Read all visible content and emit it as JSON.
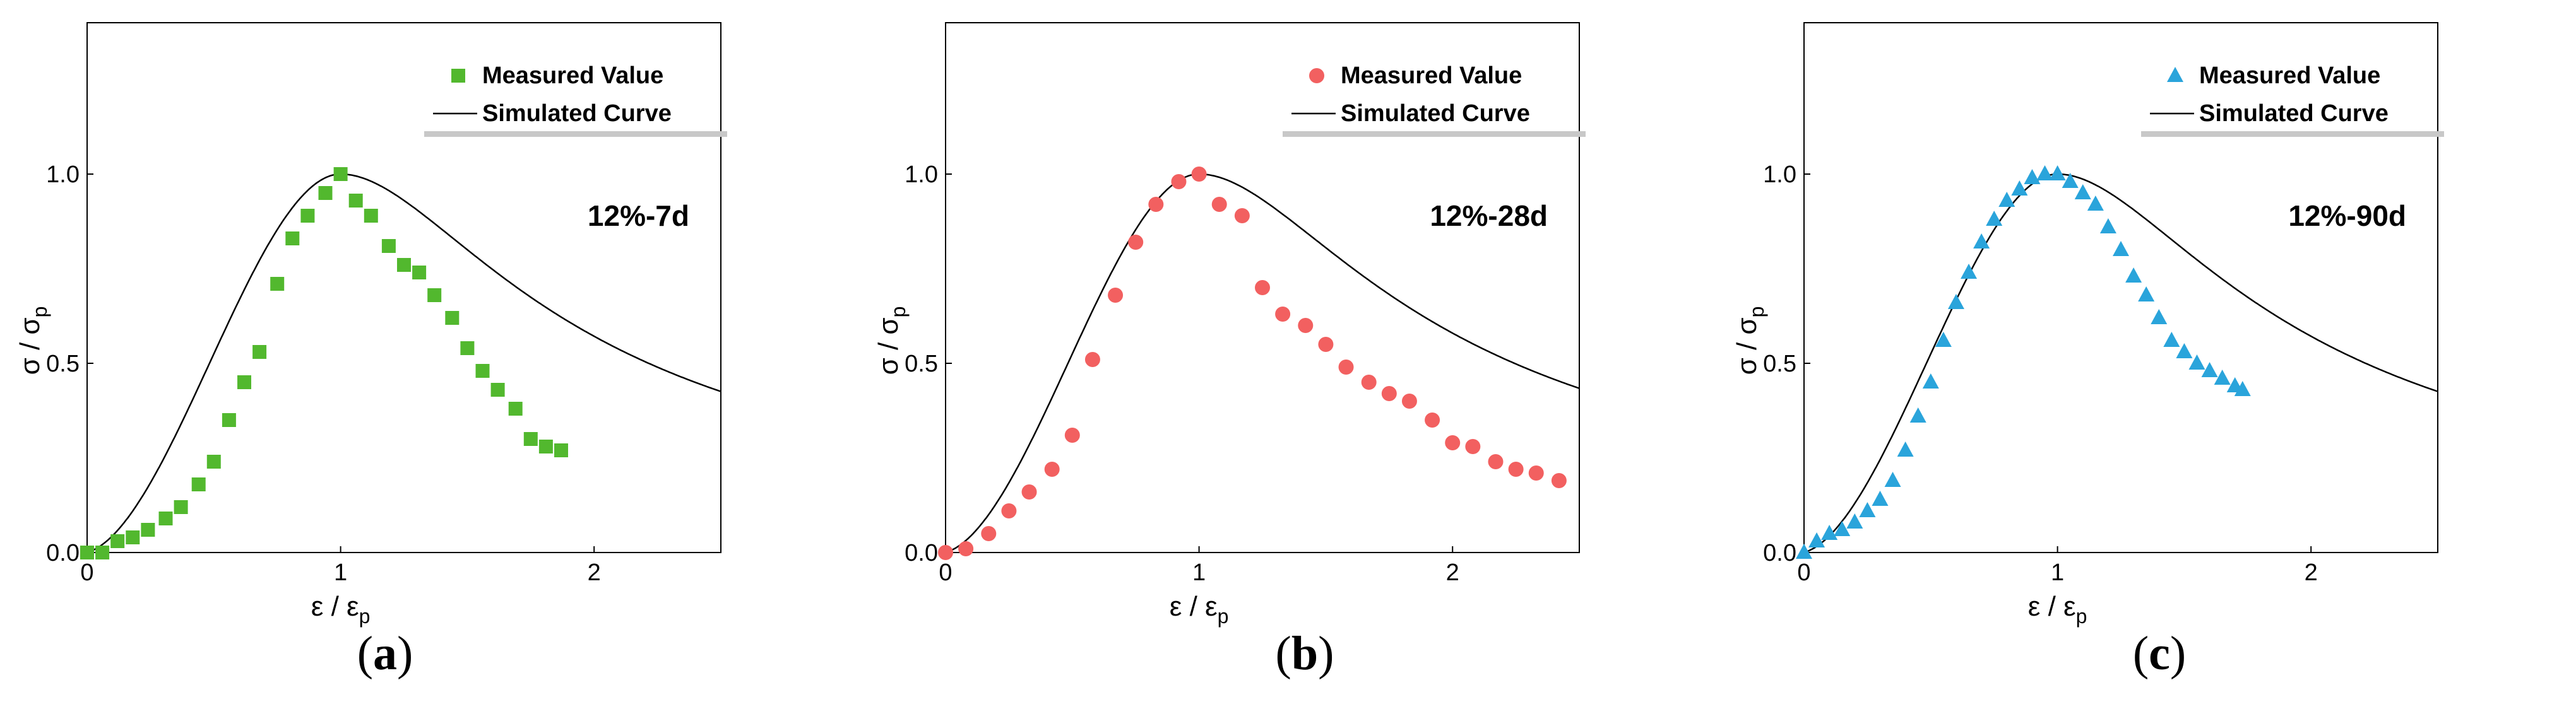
{
  "legend": {
    "measured": "Measured Value",
    "simulated": "Simulated Curve"
  },
  "axis_symbols": {
    "y_main": "σ / σ",
    "y_sub": "p",
    "x_main": "ε / ε",
    "x_sub": "p"
  },
  "panels": [
    {
      "open": "(",
      "letter": "a",
      "close": ")"
    },
    {
      "open": "(",
      "letter": "b",
      "close": ")"
    },
    {
      "open": "(",
      "letter": "c",
      "close": ")"
    }
  ],
  "chart_data": [
    {
      "type": "scatter",
      "title": "12%-7d",
      "xlabel": "ε / εp",
      "ylabel": "σ / σp",
      "xlim": [
        0,
        2.5
      ],
      "ylim": [
        0,
        1.4
      ],
      "xticks": [
        0,
        1,
        2
      ],
      "yticks": [
        0.0,
        0.5,
        1.0
      ],
      "xtick_labels": [
        "0",
        "1",
        "2"
      ],
      "ytick_labels": [
        "0.0",
        "0.5",
        "1.0"
      ],
      "marker": "square",
      "color": "#52b82e",
      "legend_position": "top-right",
      "curve": {
        "name": "Simulated Curve",
        "model": "a*x + (3-2a)*x^2 + (a-2)*x^3 for x<=1; x/(b*(x-1)^2 + x) for x>1",
        "a": 0.2,
        "b": 1.5,
        "color": "#000000"
      },
      "series": [
        {
          "name": "Measured Value",
          "x": [
            0.0,
            0.06,
            0.12,
            0.18,
            0.24,
            0.31,
            0.37,
            0.44,
            0.5,
            0.56,
            0.62,
            0.68,
            0.75,
            0.81,
            0.87,
            0.94,
            1.0,
            1.06,
            1.12,
            1.19,
            1.25,
            1.31,
            1.37,
            1.44,
            1.5,
            1.56,
            1.62,
            1.69,
            1.75,
            1.81,
            1.87
          ],
          "y": [
            0.0,
            0.0,
            0.03,
            0.04,
            0.06,
            0.09,
            0.12,
            0.18,
            0.24,
            0.35,
            0.45,
            0.53,
            0.71,
            0.83,
            0.89,
            0.95,
            1.0,
            0.93,
            0.89,
            0.81,
            0.76,
            0.74,
            0.68,
            0.62,
            0.54,
            0.48,
            0.43,
            0.38,
            0.3,
            0.28,
            0.27
          ]
        }
      ]
    },
    {
      "type": "scatter",
      "title": "12%-28d",
      "xlabel": "ε / εp",
      "ylabel": "σ / σp",
      "xlim": [
        0,
        2.5
      ],
      "ylim": [
        0,
        1.4
      ],
      "xticks": [
        0,
        1,
        2
      ],
      "yticks": [
        0.0,
        0.5,
        1.0
      ],
      "xtick_labels": [
        "0",
        "1",
        "2"
      ],
      "ytick_labels": [
        "0.0",
        "0.5",
        "1.0"
      ],
      "marker": "circle",
      "color": "#f26060",
      "legend_position": "top-right",
      "curve": {
        "name": "Simulated Curve",
        "model": "a*x + (3-2a)*x^2 + (a-2)*x^3 for x<=1; x/(b*(x-1)^2 + x) for x>1",
        "a": 0.2,
        "b": 1.45,
        "color": "#000000"
      },
      "series": [
        {
          "name": "Measured Value",
          "x": [
            0.0,
            0.08,
            0.17,
            0.25,
            0.33,
            0.42,
            0.5,
            0.58,
            0.67,
            0.75,
            0.83,
            0.92,
            1.0,
            1.08,
            1.17,
            1.25,
            1.33,
            1.42,
            1.5,
            1.58,
            1.67,
            1.75,
            1.83,
            1.92,
            2.0,
            2.08,
            2.17,
            2.25,
            2.33,
            2.42
          ],
          "y": [
            0.0,
            0.01,
            0.05,
            0.11,
            0.16,
            0.22,
            0.31,
            0.51,
            0.68,
            0.82,
            0.92,
            0.98,
            1.0,
            0.92,
            0.89,
            0.7,
            0.63,
            0.6,
            0.55,
            0.49,
            0.45,
            0.42,
            0.4,
            0.35,
            0.29,
            0.28,
            0.24,
            0.22,
            0.21,
            0.19
          ]
        }
      ]
    },
    {
      "type": "scatter",
      "title": "12%-90d",
      "xlabel": "ε / εp",
      "ylabel": "σ / σp",
      "xlim": [
        0,
        2.5
      ],
      "ylim": [
        0,
        1.4
      ],
      "xticks": [
        0,
        1,
        2
      ],
      "yticks": [
        0.0,
        0.5,
        1.0
      ],
      "xtick_labels": [
        "0",
        "1",
        "2"
      ],
      "ytick_labels": [
        "0.0",
        "0.5",
        "1.0"
      ],
      "marker": "triangle",
      "color": "#2aa4db",
      "legend_position": "top-right",
      "curve": {
        "name": "Simulated Curve",
        "model": "a*x + (3-2a)*x^2 + (a-2)*x^3 for x<=1; x/(b*(x-1)^2 + x) for x>1",
        "a": 0.2,
        "b": 1.5,
        "color": "#000000"
      },
      "series": [
        {
          "name": "Measured Value",
          "x": [
            0.0,
            0.05,
            0.1,
            0.15,
            0.2,
            0.25,
            0.3,
            0.35,
            0.4,
            0.45,
            0.5,
            0.55,
            0.6,
            0.65,
            0.7,
            0.75,
            0.8,
            0.85,
            0.9,
            0.95,
            1.0,
            1.05,
            1.1,
            1.15,
            1.2,
            1.25,
            1.3,
            1.35,
            1.4,
            1.45,
            1.5,
            1.55,
            1.6,
            1.65,
            1.7,
            1.73
          ],
          "y": [
            0.0,
            0.03,
            0.05,
            0.06,
            0.08,
            0.11,
            0.14,
            0.19,
            0.27,
            0.36,
            0.45,
            0.56,
            0.66,
            0.74,
            0.82,
            0.88,
            0.93,
            0.96,
            0.99,
            1.0,
            1.0,
            0.98,
            0.95,
            0.92,
            0.86,
            0.8,
            0.73,
            0.68,
            0.62,
            0.56,
            0.53,
            0.5,
            0.48,
            0.46,
            0.44,
            0.43
          ]
        }
      ]
    }
  ]
}
